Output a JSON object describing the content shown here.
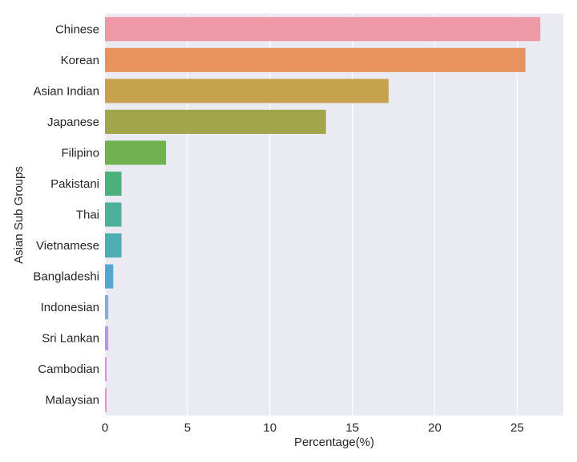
{
  "chart_data": {
    "type": "bar",
    "orientation": "horizontal",
    "title": "",
    "xlabel": "Percentage(%)",
    "ylabel": "Asian Sub Groups",
    "xlim": [
      0,
      27.8
    ],
    "xticks": [
      0,
      5,
      10,
      15,
      20,
      25
    ],
    "grid": true,
    "legend": "none",
    "background_color": "#eaeaf2",
    "grid_color": "#ffffff",
    "categories": [
      "Chinese",
      "Korean",
      "Asian Indian",
      "Japanese",
      "Filipino",
      "Pakistani",
      "Thai",
      "Vietnamese",
      "Bangladeshi",
      "Indonesian",
      "Sri Lankan",
      "Cambodian",
      "Malaysian"
    ],
    "values": [
      26.4,
      25.5,
      17.2,
      13.4,
      3.7,
      1.0,
      1.0,
      1.0,
      0.5,
      0.2,
      0.2,
      0.1,
      0.1
    ],
    "colors": [
      "#ef98a6",
      "#e8935e",
      "#c6a24f",
      "#a3a54b",
      "#6fb24f",
      "#4ab17b",
      "#4bb09c",
      "#4cadb3",
      "#52a8cf",
      "#8aa8e6",
      "#b697eb",
      "#e38fe6",
      "#ed8fca"
    ]
  }
}
